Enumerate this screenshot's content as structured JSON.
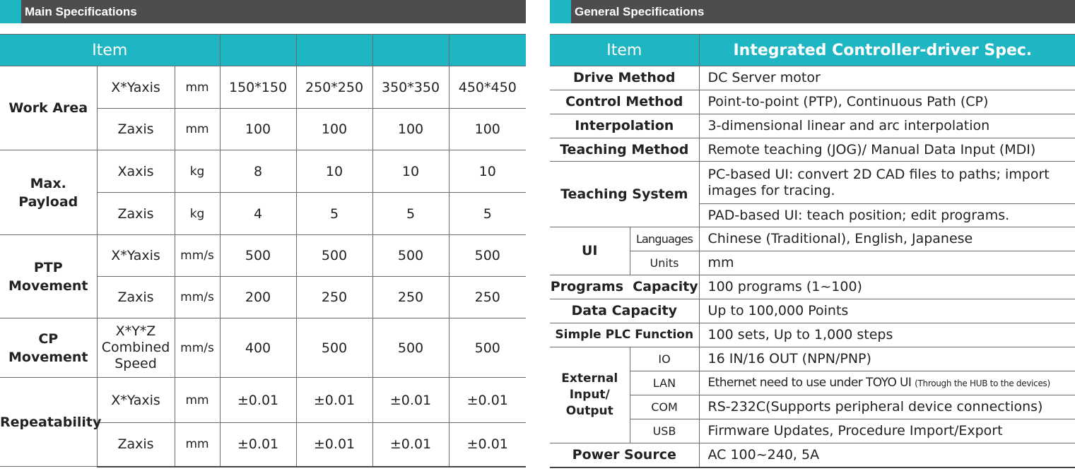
{
  "main": {
    "title": "Main Specifications",
    "header": {
      "item": "Item",
      "models": [
        "",
        "",
        "",
        ""
      ]
    },
    "rows": [
      {
        "category": "Work Area",
        "axis": "X*Yaxis",
        "unit": "mm",
        "values": [
          "150*150",
          "250*250",
          "350*350",
          "450*450"
        ]
      },
      {
        "axis": "Zaxis",
        "unit": "mm",
        "values": [
          "100",
          "100",
          "100",
          "100"
        ]
      },
      {
        "category": "Max. Payload",
        "axis": "Xaxis",
        "unit": "kg",
        "values": [
          "8",
          "10",
          "10",
          "10"
        ]
      },
      {
        "axis": "Zaxis",
        "unit": "kg",
        "values": [
          "4",
          "5",
          "5",
          "5"
        ]
      },
      {
        "category": "PTP Movement",
        "axis": "X*Yaxis",
        "unit": "mm/s",
        "values": [
          "500",
          "500",
          "500",
          "500"
        ]
      },
      {
        "axis": "Zaxis",
        "unit": "mm/s",
        "values": [
          "200",
          "250",
          "250",
          "250"
        ]
      },
      {
        "category": "CP Movement",
        "axis": "X*Y*Z Combined Speed",
        "unit": "mm/s",
        "values": [
          "400",
          "500",
          "500",
          "500"
        ]
      },
      {
        "category": "Repeatability",
        "axis": "X*Yaxis",
        "unit": "mm",
        "values": [
          "±0.01",
          "±0.01",
          "±0.01",
          "±0.01"
        ]
      },
      {
        "axis": "Zaxis",
        "unit": "mm",
        "values": [
          "±0.01",
          "±0.01",
          "±0.01",
          "±0.01"
        ]
      }
    ]
  },
  "general": {
    "title": "General Specifications",
    "header": {
      "item": "Item",
      "model_code": "",
      "spec": "Integrated Controller-driver Spec."
    },
    "drive_method": {
      "label": "Drive Method",
      "value": "DC Server motor"
    },
    "control_method": {
      "label": "Control Method",
      "value": "Point-to-point (PTP), Continuous Path (CP)"
    },
    "interpolation": {
      "label": "Interpolation",
      "value": "3-dimensional linear and arc interpolation"
    },
    "teaching_method": {
      "label": "Teaching Method",
      "value": "Remote teaching (JOG)/ Manual Data Input (MDI)"
    },
    "teaching_system": {
      "label": "Teaching System",
      "pc_value": "PC-based UI: convert 2D CAD files to paths; import images for tracing.",
      "pad_value": "PAD-based UI: teach position; edit programs."
    },
    "ui": {
      "label": "UI",
      "languages_label": "Languages",
      "languages_value": "Chinese (Traditional), English, Japanese",
      "units_label": "Units",
      "units_value": "mm"
    },
    "programs_capacity": {
      "label": "Programs  Capacity",
      "value": "100 programs (1~100)"
    },
    "data_capacity": {
      "label": "Data Capacity",
      "value": "Up to 100,000 Points"
    },
    "plc": {
      "label": "Simple PLC Function",
      "value": "100 sets, Up to 1,000 steps"
    },
    "external": {
      "label": "External Input/ Output",
      "io_label": "IO",
      "io_value": "16 IN/16 OUT (NPN/PNP)",
      "lan_label": "LAN",
      "lan_value": "Ethernet need to use under TOYO UI",
      "lan_note": "(Through the HUB to the devices)",
      "com_label": "COM",
      "com_value": "RS-232C(Supports peripheral device connections)",
      "usb_label": "USB",
      "usb_value": "Firmware Updates, Procedure Import/Export"
    },
    "power": {
      "label": "Power Source",
      "value": "AC 100~240, 5A"
    }
  }
}
